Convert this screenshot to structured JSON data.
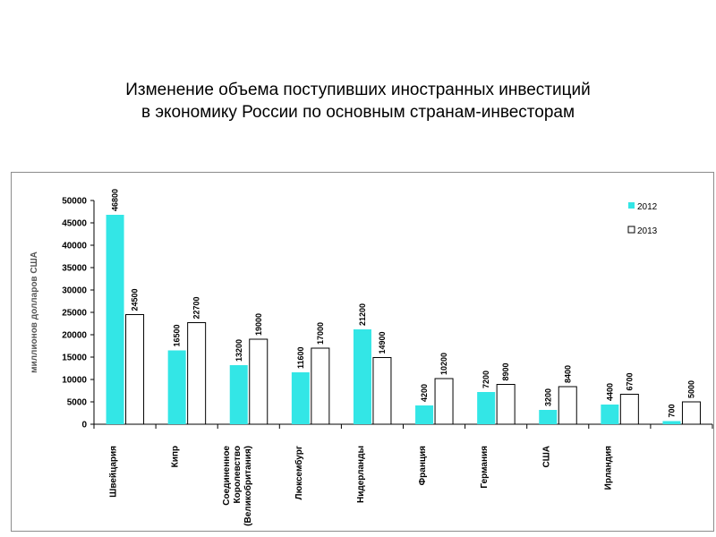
{
  "title_line1": "Изменение объема поступивших иностранных инвестиций",
  "title_line2": "в экономику России по основным странам-инвесторам",
  "chart_data": {
    "type": "bar",
    "title": "",
    "xlabel": "",
    "ylabel": "миллионов долларов США",
    "ylim": [
      0,
      50000
    ],
    "yticks": [
      0,
      5000,
      10000,
      15000,
      20000,
      25000,
      30000,
      35000,
      40000,
      45000,
      50000
    ],
    "categories": [
      "Швейцария",
      "Кипр",
      "Соединенное Королевство (Великобритания)",
      "Люксембург",
      "Нидерланды",
      "Франция",
      "Германия",
      "США",
      "Ирландия",
      ""
    ],
    "category_lines": [
      [
        "Швейцария"
      ],
      [
        "Кипр"
      ],
      [
        "Соединенное",
        "Королевство",
        "(Великобритания)"
      ],
      [
        "Люксембург"
      ],
      [
        "Нидерланды"
      ],
      [
        "Франция"
      ],
      [
        "Германия"
      ],
      [
        "США"
      ],
      [
        "Ирландия"
      ],
      []
    ],
    "series": [
      {
        "name": "2012",
        "color": "#33e6e6",
        "values": [
          46800,
          16500,
          13200,
          11600,
          21200,
          4200,
          7200,
          3200,
          4400,
          700
        ]
      },
      {
        "name": "2013",
        "color": "#ffffff",
        "values": [
          24500,
          22700,
          19000,
          17000,
          14900,
          10200,
          8900,
          8400,
          6700,
          5000
        ]
      }
    ],
    "legend_position": "top-right",
    "grid": false
  }
}
